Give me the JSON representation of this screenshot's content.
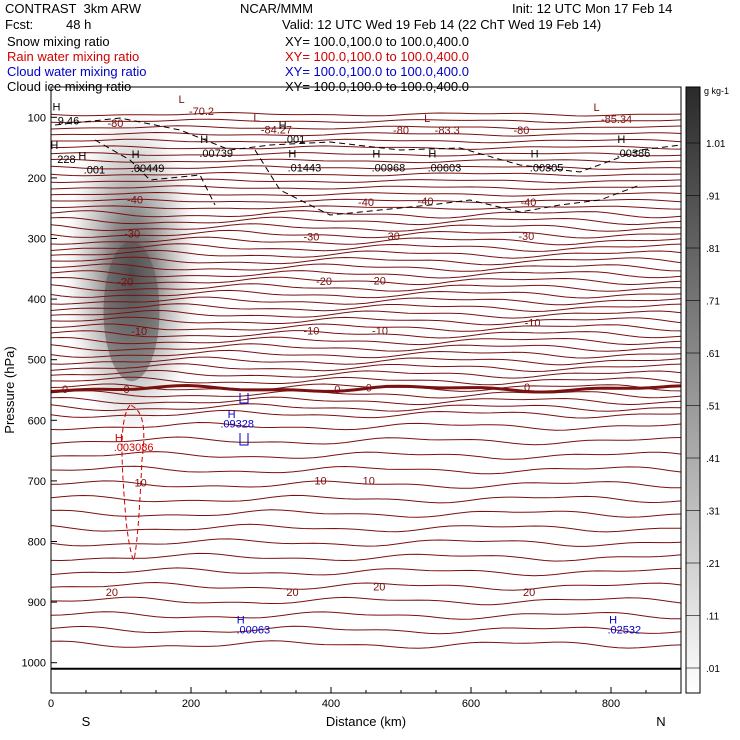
{
  "header": {
    "model": "CONTRAST  3km ARW",
    "center": "NCAR/MMM",
    "init": "Init: 12 UTC Mon 17 Feb 14",
    "fcst_label": "Fcst:",
    "fcst_value": "48 h",
    "valid": "Valid: 12 UTC Wed 19 Feb 14 (22 ChT Wed 19 Feb 14)",
    "fields": [
      {
        "name": "Snow mixing ratio",
        "xy": "XY= 100.0,100.0 to 100.0,400.0",
        "color": "#000000"
      },
      {
        "name": "Rain water mixing ratio",
        "xy": "XY= 100.0,100.0 to 100.0,400.0",
        "color": "#d00000"
      },
      {
        "name": "Cloud water mixing ratio",
        "xy": "XY= 100.0,100.0 to 100.0,400.0",
        "color": "#0000c8"
      },
      {
        "name": "Cloud ice mixing ratio",
        "xy": "XY= 100.0,100.0 to 100.0,400.0",
        "color": "#000000"
      }
    ]
  },
  "chart_data": {
    "type": "cross-section",
    "xlabel": "Distance (km)",
    "ylabel": "Pressure (hPa)",
    "xlim": [
      0,
      900
    ],
    "ylim": [
      1050,
      50
    ],
    "x_ticks": [
      0,
      200,
      400,
      600,
      800
    ],
    "y_ticks": [
      100,
      200,
      300,
      400,
      500,
      600,
      700,
      800,
      900,
      1000
    ],
    "end_labels": {
      "left": "S",
      "right": "N"
    },
    "colorbar": {
      "unit": "g kg-1",
      "levels": [
        "1.01",
        ".91",
        ".81",
        ".71",
        ".61",
        ".51",
        ".41",
        ".31",
        ".21",
        ".11",
        ".01"
      ]
    },
    "temperature_contours": [
      {
        "level": "-70.2",
        "x": 215,
        "p": 90,
        "type": "value"
      },
      {
        "level": "-80",
        "x": 92,
        "p": 109,
        "type": "label"
      },
      {
        "level": "-84.27",
        "x": 322,
        "p": 120,
        "type": "value"
      },
      {
        "level": "-80",
        "x": 500,
        "p": 121,
        "type": "label"
      },
      {
        "level": "-83.3",
        "x": 566,
        "p": 121,
        "type": "value"
      },
      {
        "level": "-80",
        "x": 672,
        "p": 121,
        "type": "label"
      },
      {
        "level": "-85.34",
        "x": 808,
        "p": 103,
        "type": "value"
      },
      {
        "level": "-40",
        "x": 120,
        "p": 236,
        "type": "label"
      },
      {
        "level": "-40",
        "x": 450,
        "p": 240,
        "type": "label"
      },
      {
        "level": "-40",
        "x": 535,
        "p": 238,
        "type": "label"
      },
      {
        "level": "-40",
        "x": 682,
        "p": 240,
        "type": "label"
      },
      {
        "level": "-30",
        "x": 116,
        "p": 292,
        "type": "label"
      },
      {
        "level": "-30",
        "x": 372,
        "p": 297,
        "type": "label"
      },
      {
        "level": "-30",
        "x": 487,
        "p": 296,
        "type": "label"
      },
      {
        "level": "-30",
        "x": 679,
        "p": 296,
        "type": "label"
      },
      {
        "level": "-20",
        "x": 106,
        "p": 371,
        "type": "label"
      },
      {
        "level": "-20",
        "x": 390,
        "p": 370,
        "type": "label"
      },
      {
        "level": "-20",
        "x": 467,
        "p": 369,
        "type": "label"
      },
      {
        "level": "-10",
        "x": 126,
        "p": 453,
        "type": "label"
      },
      {
        "level": "-10",
        "x": 372,
        "p": 452,
        "type": "label"
      },
      {
        "level": "-10",
        "x": 470,
        "p": 452,
        "type": "label"
      },
      {
        "level": "-10",
        "x": 688,
        "p": 439,
        "type": "label"
      },
      {
        "level": "0",
        "x": 20,
        "p": 548,
        "type": "label"
      },
      {
        "level": "0",
        "x": 108,
        "p": 548,
        "type": "label"
      },
      {
        "level": "0",
        "x": 409,
        "p": 548,
        "type": "label"
      },
      {
        "level": "0",
        "x": 454,
        "p": 546,
        "type": "label"
      },
      {
        "level": "0",
        "x": 680,
        "p": 545,
        "type": "label"
      },
      {
        "level": "10",
        "x": 128,
        "p": 703,
        "type": "label"
      },
      {
        "level": "10",
        "x": 385,
        "p": 699,
        "type": "label"
      },
      {
        "level": "10",
        "x": 454,
        "p": 699,
        "type": "label"
      },
      {
        "level": "20",
        "x": 87,
        "p": 883,
        "type": "label"
      },
      {
        "level": "20",
        "x": 345,
        "p": 883,
        "type": "label"
      },
      {
        "level": "20",
        "x": 469,
        "p": 874,
        "type": "label"
      },
      {
        "level": "20",
        "x": 683,
        "p": 883,
        "type": "label"
      }
    ],
    "cloud_ice_extrema": [
      {
        "text": "9.46",
        "x": 25,
        "p": 105,
        "type": "value"
      },
      {
        "text": "228",
        "x": 22,
        "p": 169,
        "type": "value"
      },
      {
        "text": ".001",
        "x": 62,
        "p": 186,
        "type": "value"
      },
      {
        "text": ".00449",
        "x": 138,
        "p": 184,
        "type": "value"
      },
      {
        "text": ".00739",
        "x": 236,
        "p": 159,
        "type": "value"
      },
      {
        "text": ".001",
        "x": 348,
        "p": 136,
        "type": "value"
      },
      {
        "text": ".01443",
        "x": 362,
        "p": 183,
        "type": "value"
      },
      {
        "text": ".00968",
        "x": 482,
        "p": 183,
        "type": "value"
      },
      {
        "text": ".00603",
        "x": 562,
        "p": 183,
        "type": "value"
      },
      {
        "text": ".00305",
        "x": 708,
        "p": 183,
        "type": "value"
      },
      {
        "text": ".00386",
        "x": 832,
        "p": 159,
        "type": "value"
      }
    ],
    "rain_extrema": [
      {
        "text": "H",
        "x": 97,
        "p": 628,
        "type": "marker"
      },
      {
        "text": ".003086",
        "x": 118,
        "p": 644,
        "type": "value"
      }
    ],
    "cloud_water_extrema": [
      {
        "text": "H",
        "x": 258,
        "p": 590,
        "type": "marker"
      },
      {
        "text": ".09328",
        "x": 266,
        "p": 605,
        "type": "value"
      },
      {
        "text": "H",
        "x": 271,
        "p": 929,
        "type": "marker"
      },
      {
        "text": ".00063",
        "x": 289,
        "p": 945,
        "type": "value"
      },
      {
        "text": "H",
        "x": 803,
        "p": 929,
        "type": "marker"
      },
      {
        "text": ".02532",
        "x": 819,
        "p": 945,
        "type": "value"
      }
    ]
  }
}
